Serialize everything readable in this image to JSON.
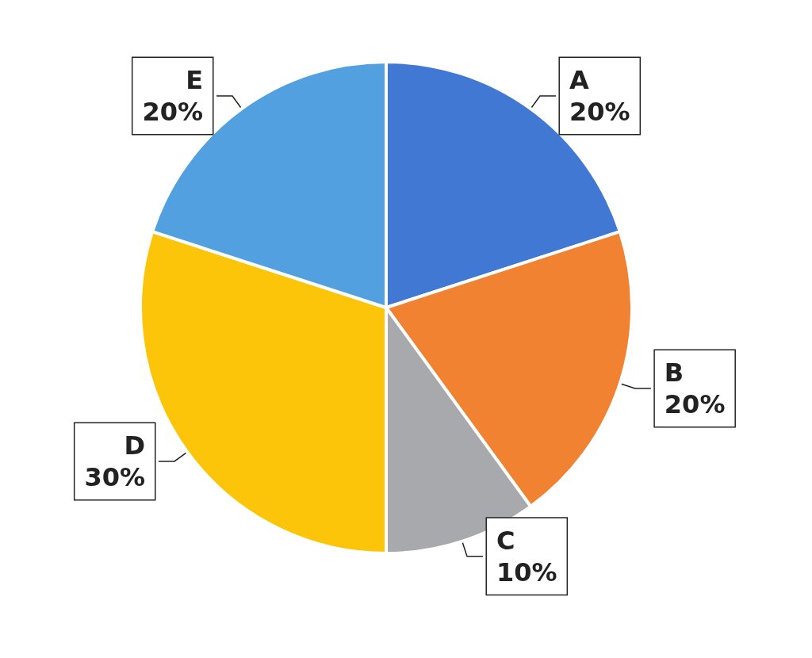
{
  "chart_data": {
    "type": "pie",
    "categories": [
      "A",
      "B",
      "C",
      "D",
      "E"
    ],
    "values": [
      20,
      20,
      10,
      30,
      20
    ],
    "value_labels": [
      "20%",
      "20%",
      "10%",
      "30%",
      "20%"
    ],
    "colors": [
      "#4178d4",
      "#f08232",
      "#a7a9ac",
      "#fdc50a",
      "#52a0e0"
    ],
    "legend": false
  }
}
